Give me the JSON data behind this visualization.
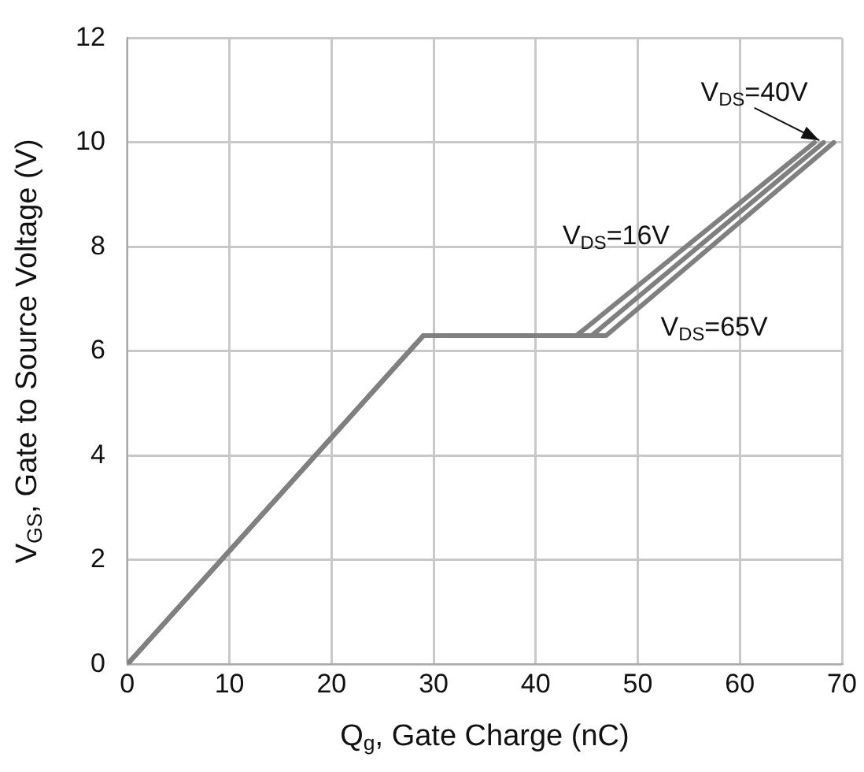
{
  "chart_data": {
    "type": "line",
    "xlabel": "Q$_{g}$, Gate Charge (nC)",
    "ylabel": "V$_{GS}$, Gate to Source Voltage (V)",
    "xlim": [
      0,
      70
    ],
    "xticks": [
      0,
      10,
      20,
      30,
      40,
      50,
      60,
      70
    ],
    "ylim": [
      0,
      12
    ],
    "yticks": [
      0,
      2,
      4,
      6,
      8,
      10,
      12
    ],
    "grid": true,
    "legend": false,
    "marker": "none",
    "line_style": "solid",
    "series": [
      {
        "color": "#808080",
        "x": [
          0,
          29,
          45.5,
          68.2
        ],
        "values": [
          0,
          6.3,
          6.3,
          10
        ]
      },
      {
        "color": "#808080",
        "x": [
          0,
          29,
          44,
          67.3
        ],
        "values": [
          0,
          6.3,
          6.3,
          10
        ]
      },
      {
        "color": "#808080",
        "x": [
          0,
          29,
          46.9,
          69.2
        ],
        "values": [
          0,
          6.3,
          6.3,
          10
        ]
      }
    ],
    "annotations": [
      {
        "text": "V$_{DS}$=40V",
        "x": 68.2,
        "y": 10
      },
      "V$_{DS}$=16V",
      "V$_{DS}$=65V"
    ]
  }
}
